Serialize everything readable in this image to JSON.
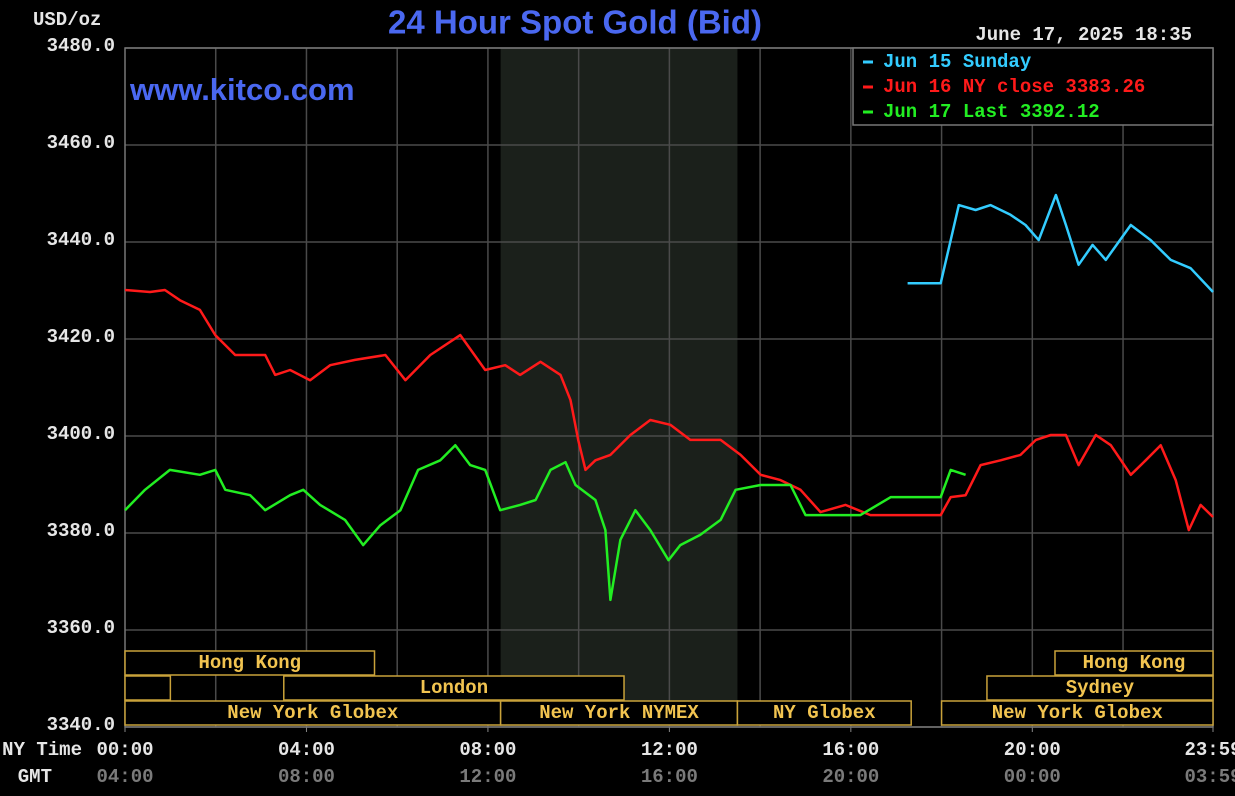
{
  "chart_data": {
    "type": "line",
    "title": "24 Hour Spot Gold (Bid)",
    "y_unit": "USD/oz",
    "timestamp": "June 17, 2025 18:35",
    "watermark": "www.kitco.com",
    "x_axis_label": "NY Time",
    "x2_axis_label": "GMT",
    "background": "#000000",
    "grid": true,
    "legend": "top-right",
    "xlim": [
      0,
      23.983
    ],
    "xticks": [
      {
        "value": 0,
        "label": "00:00"
      },
      {
        "value": 4,
        "label": "04:00"
      },
      {
        "value": 8,
        "label": "08:00"
      },
      {
        "value": 12,
        "label": "12:00"
      },
      {
        "value": 16,
        "label": "16:00"
      },
      {
        "value": 20,
        "label": "20:00"
      },
      {
        "value": 23.983,
        "label": "23:59"
      }
    ],
    "gmt_labels": [
      "04:00",
      "08:00",
      "12:00",
      "16:00",
      "20:00",
      "00:00",
      "03:59"
    ],
    "xgrid": [
      2,
      4,
      6,
      8,
      10,
      12,
      14,
      16,
      18,
      20,
      22
    ],
    "ylim": [
      3340,
      3480
    ],
    "yticks": [
      {
        "value": 3340,
        "label": "3340.0"
      },
      {
        "value": 3360,
        "label": "3360.0"
      },
      {
        "value": 3380,
        "label": "3380.0"
      },
      {
        "value": 3400,
        "label": "3400.0"
      },
      {
        "value": 3420,
        "label": "3420.0"
      },
      {
        "value": 3440,
        "label": "3440.0"
      },
      {
        "value": 3460,
        "label": "3460.0"
      },
      {
        "value": 3480,
        "label": "3480.0"
      }
    ],
    "shaded_region": [
      8.28,
      13.5
    ],
    "sessions": [
      {
        "name": "Hong Kong",
        "row": 0,
        "start": 0,
        "end": 5.5
      },
      {
        "name": "Hong Kong",
        "row": 0,
        "start": 20.5,
        "end": 23.983
      },
      {
        "name": null,
        "row": 1,
        "start": 0,
        "end": 1
      },
      {
        "name": "London",
        "row": 1,
        "start": 3.5,
        "end": 11
      },
      {
        "name": "Sydney",
        "row": 1,
        "start": 19,
        "end": 23.983
      },
      {
        "name": "New York Globex",
        "row": 2,
        "start": 0,
        "end": 8.28
      },
      {
        "name": "New York NYMEX",
        "row": 2,
        "start": 8.28,
        "end": 13.5
      },
      {
        "name": "NY Globex",
        "row": 2,
        "start": 13.5,
        "end": 17.33
      },
      {
        "name": "New York Globex",
        "row": 2,
        "start": 18,
        "end": 23.983
      }
    ],
    "series": [
      {
        "name": "Jun 15 Sunday",
        "color": "#33ccff",
        "x": [
          17.25,
          17.98,
          18.2,
          18.38,
          18.75,
          19.08,
          19.52,
          19.85,
          20.14,
          20.52,
          20.74,
          21.02,
          21.33,
          21.62,
          22.17,
          22.61,
          23.05,
          23.49,
          23.983
        ],
        "values": [
          3431.5,
          3431.5,
          3440.4,
          3447.6,
          3446.6,
          3447.6,
          3445.6,
          3443.5,
          3440.4,
          3449.7,
          3443.5,
          3435.3,
          3439.4,
          3436.3,
          3443.5,
          3440.4,
          3436.3,
          3434.6,
          3429.7
        ]
      },
      {
        "name": "Jun 16 NY close 3383.26",
        "color": "#ff1a1a",
        "x": [
          0,
          0.55,
          0.88,
          1.21,
          1.65,
          1.99,
          2.43,
          3.09,
          3.31,
          3.64,
          4.08,
          4.52,
          5.07,
          5.74,
          6.18,
          6.73,
          7.39,
          7.94,
          8.38,
          8.71,
          9.16,
          9.6,
          9.82,
          9.99,
          10.15,
          10.37,
          10.7,
          11.14,
          11.58,
          12.02,
          12.46,
          13.13,
          13.57,
          14.01,
          14.45,
          14.89,
          15.33,
          15.88,
          16.43,
          16.88,
          17.98,
          18.2,
          18.53,
          18.86,
          19.3,
          19.74,
          20.08,
          20.41,
          20.74,
          21.02,
          21.4,
          21.73,
          22.17,
          22.5,
          22.83,
          23.16,
          23.45,
          23.71,
          23.983
        ],
        "values": [
          3430.1,
          3429.7,
          3430.1,
          3428,
          3426,
          3420.8,
          3416.7,
          3416.7,
          3412.6,
          3413.6,
          3411.5,
          3414.6,
          3415.7,
          3416.7,
          3411.5,
          3416.7,
          3420.8,
          3413.6,
          3414.6,
          3412.6,
          3415.3,
          3412.6,
          3407.4,
          3399.2,
          3393,
          3395,
          3396.1,
          3400.2,
          3403.3,
          3402.3,
          3399.2,
          3399.2,
          3396.1,
          3392,
          3390.9,
          3388.9,
          3384.3,
          3385.8,
          3383.7,
          3383.7,
          3383.7,
          3387.4,
          3387.8,
          3394,
          3395,
          3396.1,
          3399.2,
          3400.2,
          3400.2,
          3394,
          3400.2,
          3398.1,
          3392,
          3395,
          3398.1,
          3390.9,
          3380.6,
          3385.8,
          3383.3
        ]
      },
      {
        "name": "Jun 17 Last 3392.12",
        "color": "#22ee22",
        "x": [
          0,
          0.44,
          0.99,
          1.65,
          1.99,
          2.21,
          2.76,
          3.09,
          3.64,
          3.93,
          4.3,
          4.85,
          5.25,
          5.63,
          6.07,
          6.46,
          6.95,
          7.28,
          7.61,
          7.94,
          8.27,
          8.71,
          9.05,
          9.38,
          9.71,
          9.93,
          10.37,
          10.59,
          10.7,
          10.92,
          11.25,
          11.58,
          11.98,
          12.24,
          12.68,
          13.13,
          13.46,
          14.01,
          14.67,
          15.0,
          15.55,
          16.21,
          16.88,
          17.98,
          18.2,
          18.53
        ],
        "values": [
          3384.7,
          3388.9,
          3393,
          3392,
          3393,
          3388.9,
          3387.8,
          3384.7,
          3387.8,
          3388.9,
          3385.8,
          3382.7,
          3377.5,
          3381.6,
          3384.7,
          3393,
          3395,
          3398.1,
          3394,
          3393,
          3384.7,
          3385.8,
          3386.8,
          3393,
          3394.6,
          3389.9,
          3386.8,
          3380.6,
          3366.2,
          3378.6,
          3384.7,
          3380.6,
          3374.4,
          3377.5,
          3379.6,
          3382.7,
          3388.9,
          3389.9,
          3389.9,
          3383.7,
          3383.7,
          3383.7,
          3387.4,
          3387.4,
          3393,
          3392
        ]
      }
    ]
  }
}
